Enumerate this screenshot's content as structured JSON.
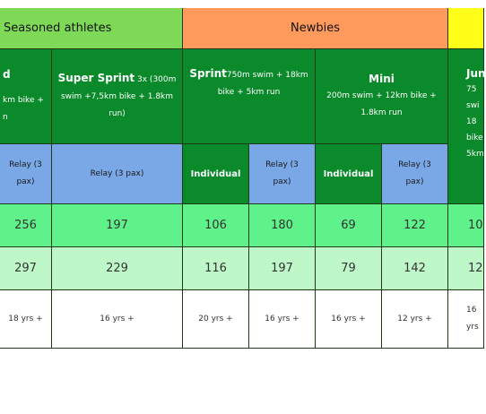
{
  "groups": {
    "seasoned": "Seasoned athletes",
    "newbies": "Newbies"
  },
  "formats": {
    "col0": {
      "title": "d",
      "line1": "km bike +",
      "line2": "n"
    },
    "super_sprint": {
      "title": "Super Sprint",
      "title_sub": " 3x (300m",
      "line1": "swim +7,5km bike + 1.8km",
      "line2": "run)"
    },
    "sprint": {
      "title": "Sprint",
      "title_sub": "750m swim + 18km",
      "line1": "bike + 5km run"
    },
    "mini": {
      "title": "Mini",
      "line1": "200m swim + 12km bike +",
      "line2": "1.8km run"
    },
    "junior": {
      "title": "Jun",
      "line1": "75",
      "line2": "swi",
      "line3": "18",
      "line4": "bike",
      "line5": "5km"
    }
  },
  "entry_types": {
    "c0": "Relay (3 pax)",
    "c1": "Relay (3 pax)",
    "c2": "Individual",
    "c3": "Relay (3 pax)",
    "c4": "Individual",
    "c5": "Relay (3 pax)"
  },
  "rows": {
    "price1": [
      "256",
      "197",
      "106",
      "180",
      "69",
      "122",
      "10"
    ],
    "price2": [
      "297",
      "229",
      "116",
      "197",
      "79",
      "142",
      "12"
    ],
    "age": [
      "18 yrs +",
      "16 yrs +",
      "20 yrs +",
      "16 yrs +",
      "16 yrs +",
      "12 yrs  +",
      "16"
    ],
    "age_extra": "yrs"
  }
}
